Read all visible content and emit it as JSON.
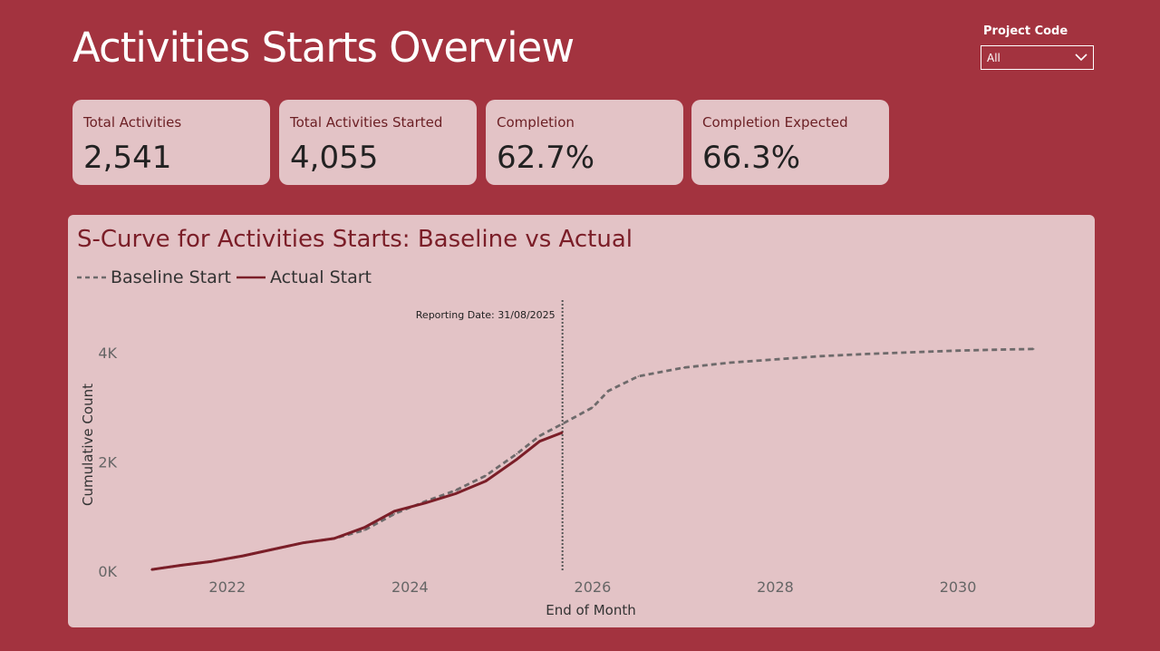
{
  "page": {
    "title": "Activities Starts Overview"
  },
  "filter": {
    "label": "Project Code",
    "value": "All",
    "icon": "chevron-down-icon"
  },
  "kpis": [
    {
      "label": "Total Activities",
      "value": "2,541"
    },
    {
      "label": "Total Activities Started",
      "value": "4,055"
    },
    {
      "label": "Completion",
      "value": "62.7%"
    },
    {
      "label": "Completion Expected",
      "value": "66.3%"
    }
  ],
  "colors": {
    "background": "#a3333f",
    "card": "#e3c3c6",
    "actual": "#7b1e28",
    "baseline": "#6e6a6b",
    "title": "#7b1e28"
  },
  "chart_data": {
    "type": "line",
    "title": "S-Curve for Activities Starts: Baseline vs Actual",
    "xlabel": "End of Month",
    "ylabel": "Cumulative Count",
    "xlim": [
      2021.0,
      2031.2
    ],
    "ylim": [
      0,
      4700
    ],
    "x_ticks": [
      2022,
      2024,
      2026,
      2028,
      2030
    ],
    "x_tick_labels": [
      "2022",
      "2024",
      "2026",
      "2028",
      "2030"
    ],
    "y_ticks": [
      0,
      2000,
      4000
    ],
    "y_tick_labels": [
      "0K",
      "2K",
      "4K"
    ],
    "legend_position": "top-left",
    "annotation": {
      "x": 2025.67,
      "label": "Reporting Date: 31/08/2025"
    },
    "series": [
      {
        "name": "Baseline Start",
        "style": "dashed",
        "color": "#6e6a6b",
        "x": [
          2021.17,
          2021.5,
          2021.83,
          2022.17,
          2022.5,
          2022.83,
          2023.17,
          2023.5,
          2023.83,
          2024.17,
          2024.5,
          2024.83,
          2025.17,
          2025.42,
          2025.67,
          2026.0,
          2026.17,
          2026.5,
          2027.0,
          2027.5,
          2028.0,
          2028.5,
          2029.0,
          2029.5,
          2030.0,
          2030.5,
          2030.83
        ],
        "y": [
          30,
          110,
          180,
          280,
          400,
          520,
          600,
          750,
          1050,
          1280,
          1480,
          1750,
          2150,
          2480,
          2700,
          3000,
          3300,
          3570,
          3730,
          3820,
          3880,
          3940,
          3980,
          4010,
          4040,
          4060,
          4070
        ]
      },
      {
        "name": "Actual Start",
        "style": "solid",
        "color": "#7b1e28",
        "x": [
          2021.17,
          2021.5,
          2021.83,
          2022.17,
          2022.5,
          2022.83,
          2023.17,
          2023.5,
          2023.83,
          2024.17,
          2024.5,
          2024.83,
          2025.17,
          2025.42,
          2025.67
        ],
        "y": [
          30,
          110,
          180,
          280,
          400,
          520,
          600,
          800,
          1100,
          1250,
          1420,
          1650,
          2050,
          2380,
          2541
        ]
      }
    ]
  }
}
